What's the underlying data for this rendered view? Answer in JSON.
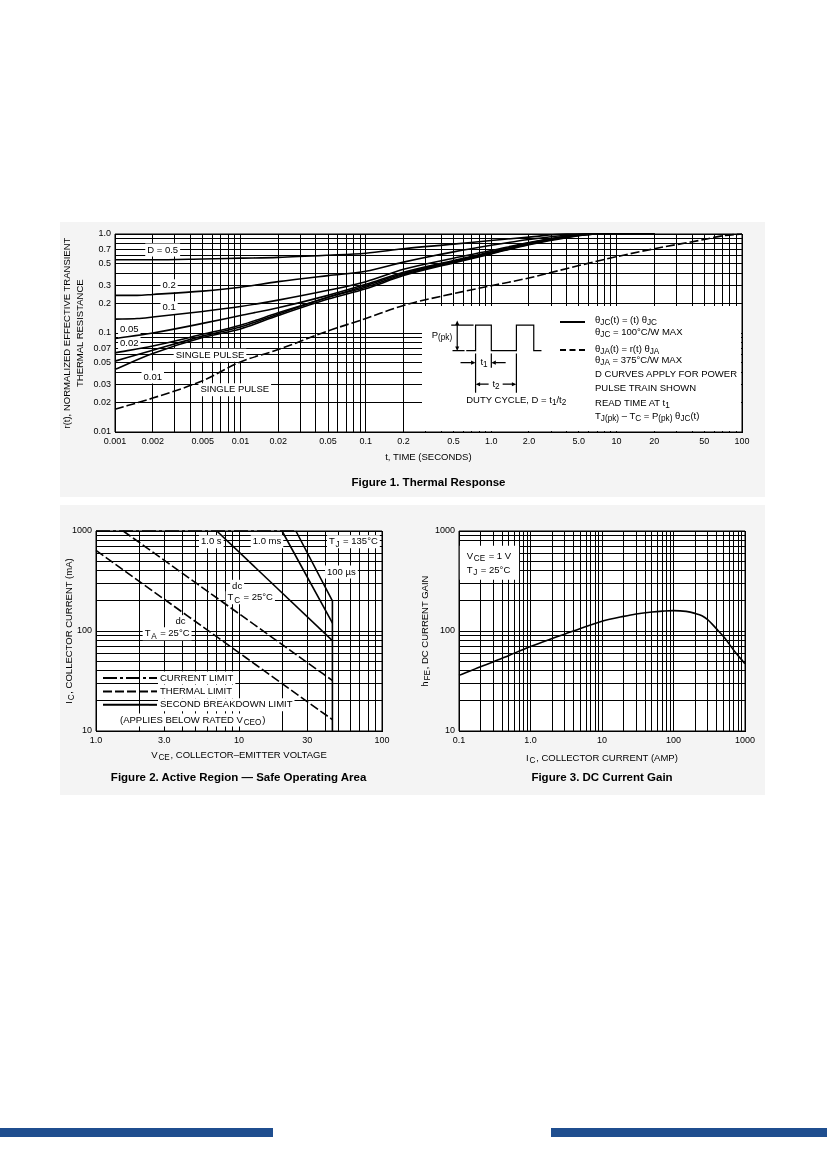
{
  "chart_data": [
    {
      "type": "line",
      "title": "Figure 1. Thermal Response",
      "xlabel": "t, TIME (SECONDS)",
      "ylabel": "r(t), NORMALIZED EFFECTIVE TRANSIENT\nTHERMAL RESISTANCE",
      "log": "xy",
      "xlim": [
        0.001,
        100
      ],
      "ylim": [
        0.01,
        1
      ],
      "xticks": [
        0.001,
        0.002,
        {
          "value": 0.003,
          "label": null
        },
        {
          "value": 0.004,
          "label": null
        },
        0.005,
        {
          "value": 0.006,
          "label": null
        },
        {
          "value": 0.007,
          "label": null
        },
        {
          "value": 0.008,
          "label": null
        },
        {
          "value": 0.009,
          "label": null
        },
        0.01,
        0.02,
        {
          "value": 0.03,
          "label": null
        },
        {
          "value": 0.04,
          "label": null
        },
        0.05,
        {
          "value": 0.06,
          "label": null
        },
        {
          "value": 0.07,
          "label": null
        },
        {
          "value": 0.08,
          "label": null
        },
        {
          "value": 0.09,
          "label": null
        },
        0.1,
        0.2,
        {
          "value": 0.3,
          "label": null
        },
        {
          "value": 0.4,
          "label": null
        },
        0.5,
        {
          "value": 0.6,
          "label": null
        },
        {
          "value": 0.7,
          "label": null
        },
        {
          "value": 0.8,
          "label": null
        },
        {
          "value": 0.9,
          "label": null
        },
        {
          "value": 1,
          "label": "1.0"
        },
        {
          "value": 2,
          "label": "2.0"
        },
        {
          "value": 3,
          "label": null
        },
        {
          "value": 4,
          "label": null
        },
        {
          "value": 5,
          "label": "5.0"
        },
        {
          "value": 6,
          "label": null
        },
        {
          "value": 7,
          "label": null
        },
        {
          "value": 8,
          "label": null
        },
        {
          "value": 9,
          "label": null
        },
        10,
        20,
        {
          "value": 30,
          "label": null
        },
        {
          "value": 40,
          "label": null
        },
        50,
        {
          "value": 60,
          "label": null
        },
        {
          "value": 70,
          "label": null
        },
        {
          "value": 80,
          "label": null
        },
        {
          "value": 90,
          "label": null
        },
        100
      ],
      "yticks": [
        0.01,
        0.02,
        0.03,
        {
          "value": 0.04,
          "label": null
        },
        0.05,
        {
          "value": 0.06,
          "label": null
        },
        0.07,
        {
          "value": 0.08,
          "label": null
        },
        {
          "value": 0.09,
          "label": null
        },
        0.1,
        0.2,
        0.3,
        {
          "value": 0.4,
          "label": null
        },
        0.5,
        {
          "value": 0.6,
          "label": null
        },
        0.7,
        {
          "value": 0.8,
          "label": null
        },
        {
          "value": 0.9,
          "label": null
        },
        {
          "value": 1,
          "label": "1.0"
        }
      ],
      "grid": true,
      "series": [
        {
          "color": "#000000",
          "x": [
            0.001,
            0.002,
            0.005,
            0.01,
            0.02,
            0.05,
            0.1,
            0.2,
            0.5,
            1,
            2,
            4,
            20
          ],
          "values": [
            0.55,
            0.55,
            0.56,
            0.57,
            0.58,
            0.61,
            0.64,
            0.71,
            0.79,
            0.86,
            0.93,
            1.0,
            1.0
          ]
        },
        {
          "color": "#000000",
          "x": [
            0.001,
            0.0015,
            0.002,
            0.005,
            0.01,
            0.02,
            0.05,
            0.1,
            0.2,
            0.5,
            1,
            2,
            4,
            6,
            20
          ],
          "values": [
            0.24,
            0.24,
            0.245,
            0.265,
            0.29,
            0.33,
            0.38,
            0.42,
            0.52,
            0.66,
            0.77,
            0.88,
            0.97,
            1.0,
            1.0
          ]
        },
        {
          "color": "#000000",
          "x": [
            0.001,
            0.0015,
            0.002,
            0.005,
            0.01,
            0.02,
            0.05,
            0.1,
            0.2,
            0.5,
            1,
            2,
            4,
            6,
            20
          ],
          "values": [
            0.138,
            0.14,
            0.145,
            0.165,
            0.185,
            0.215,
            0.27,
            0.33,
            0.44,
            0.57,
            0.68,
            0.82,
            0.95,
            1.0,
            1.0
          ]
        },
        {
          "color": "#000000",
          "x": [
            0.001,
            0.002,
            0.005,
            0.01,
            0.02,
            0.05,
            0.1,
            0.2,
            0.5,
            1,
            2,
            4,
            7,
            20
          ],
          "values": [
            0.088,
            0.1,
            0.125,
            0.15,
            0.18,
            0.24,
            0.31,
            0.41,
            0.54,
            0.66,
            0.81,
            0.95,
            1.0,
            1.0
          ]
        },
        {
          "color": "#000000",
          "x": [
            0.001,
            0.002,
            0.005,
            0.01,
            0.02,
            0.05,
            0.1,
            0.2,
            0.5,
            1,
            2,
            4,
            7,
            20
          ],
          "values": [
            0.063,
            0.074,
            0.097,
            0.12,
            0.16,
            0.23,
            0.3,
            0.4,
            0.53,
            0.65,
            0.8,
            0.94,
            1.0,
            1.0
          ]
        },
        {
          "color": "#000000",
          "x": [
            0.001,
            0.002,
            0.005,
            0.01,
            0.02,
            0.05,
            0.1,
            0.2,
            0.5,
            1,
            2,
            4,
            7,
            20
          ],
          "values": [
            0.052,
            0.067,
            0.093,
            0.115,
            0.155,
            0.23,
            0.29,
            0.39,
            0.52,
            0.64,
            0.79,
            0.93,
            1.0,
            1.0
          ]
        },
        {
          "color": "#000000",
          "x": [
            0.001,
            0.002,
            0.005,
            0.01,
            0.02,
            0.05,
            0.1,
            0.2,
            0.5,
            1,
            2,
            4,
            7,
            20
          ],
          "values": [
            0.043,
            0.062,
            0.09,
            0.11,
            0.15,
            0.22,
            0.28,
            0.38,
            0.51,
            0.63,
            0.78,
            0.92,
            1.0,
            1.0
          ]
        },
        {
          "color": "#000000",
          "line_style": "dashed",
          "x": [
            0.001,
            0.002,
            0.005,
            0.01,
            0.02,
            0.05,
            0.1,
            0.2,
            0.5,
            1,
            2,
            5,
            10,
            20,
            50,
            70,
            100
          ],
          "values": [
            0.017,
            0.022,
            0.033,
            0.051,
            0.068,
            0.105,
            0.14,
            0.19,
            0.25,
            0.3,
            0.36,
            0.48,
            0.59,
            0.71,
            0.88,
            0.96,
            1.0
          ]
        }
      ],
      "annotations": [
        {
          "text": "D = 0.5",
          "x": 0.0024,
          "y": 0.69
        },
        {
          "text": "0.2",
          "x": 0.0027,
          "y": 0.3
        },
        {
          "text": "0.1",
          "x": 0.0027,
          "y": 0.18
        },
        {
          "text": "0.05",
          "x": 0.0013,
          "y": 0.11
        },
        {
          "text": "0.02",
          "x": 0.0013,
          "y": 0.079
        },
        {
          "text": "0.01",
          "x": 0.002,
          "y": 0.036
        },
        "SINGLE PULSE",
        "SINGLE PULSE",
        "P$_{(pk)}$",
        "t$_{1}$",
        "t$_{2}$",
        "DUTY CYCLE, D = t$_{1}$/t$_{2}$",
        "θ$_{JC}$(t) = (t) θ$_{JC}$",
        "θ$_{JC}$ = 100°C/W MAX",
        "θ$_{JA}$(t) = r(t) θ$_{JA}$",
        "θ$_{JA}$ = 375°C/W MAX",
        "D CURVES APPLY FOR POWER",
        "PULSE TRAIN SHOWN",
        "READ TIME AT t$_{1}$",
        "T$_{J(pk)}$ – T$_{C}$ = P$_{(pk)}$ θ$_{JC}$(t)"
      ]
    },
    {
      "type": "line",
      "title": "Figure 2. Active Region — Safe Operating Area",
      "xlabel": "V$_{CE}$, COLLECTOR–EMITTER VOLTAGE",
      "ylabel": "I$_{C}$, COLLECTOR CURRENT (mA)",
      "log": "xy",
      "xlim": [
        1,
        100
      ],
      "ylim": [
        10,
        1000
      ],
      "xticks": [
        {
          "value": 1,
          "label": "1.0"
        },
        {
          "value": 2,
          "label": null
        },
        {
          "value": 3,
          "label": "3.0"
        },
        {
          "value": 4,
          "label": null
        },
        {
          "value": 5,
          "label": null
        },
        {
          "value": 6,
          "label": null
        },
        {
          "value": 7,
          "label": null
        },
        {
          "value": 8,
          "label": null
        },
        {
          "value": 9,
          "label": null
        },
        10,
        {
          "value": 20,
          "label": null
        },
        30,
        {
          "value": 40,
          "label": null
        },
        {
          "value": 50,
          "label": null
        },
        {
          "value": 60,
          "label": null
        },
        {
          "value": 70,
          "label": null
        },
        {
          "value": 80,
          "label": null
        },
        {
          "value": 90,
          "label": null
        },
        100
      ],
      "yticks": [
        10,
        {
          "value": 20,
          "label": null
        },
        {
          "value": 30,
          "label": null
        },
        {
          "value": 40,
          "label": null
        },
        {
          "value": 50,
          "label": null
        },
        {
          "value": 60,
          "label": null
        },
        {
          "value": 70,
          "label": null
        },
        {
          "value": 80,
          "label": null
        },
        {
          "value": 90,
          "label": null
        },
        100,
        {
          "value": 200,
          "label": null
        },
        {
          "value": 300,
          "label": null
        },
        {
          "value": 400,
          "label": null
        },
        {
          "value": 500,
          "label": null
        },
        {
          "value": 600,
          "label": null
        },
        {
          "value": 700,
          "label": null
        },
        {
          "value": 800,
          "label": null
        },
        {
          "value": 900,
          "label": null
        },
        1000
      ],
      "grid": true,
      "legend": "bottom left",
      "series": [
        {
          "name": "CURRENT LIMIT",
          "color": "#000000",
          "line_style": "dashdot",
          "x": [
            1,
            25
          ],
          "values": [
            1000,
            1000
          ]
        },
        {
          "name": "THERMAL LIMIT",
          "color": "#000000",
          "line_style": "dashed",
          "x": [
            1.55,
            45
          ],
          "values": [
            1000,
            32
          ]
        },
        {
          "name": "SECOND BREAKDOWN LIMIT",
          "color": "#000000",
          "x": [
            7,
            45
          ],
          "values": [
            1000,
            80
          ]
        },
        {
          "color": "#000000",
          "line_style": "dashed",
          "x": [
            1,
            45
          ],
          "values": [
            640,
            13
          ]
        },
        {
          "color": "#000000",
          "x": [
            20,
            45
          ],
          "values": [
            1000,
            120
          ]
        },
        {
          "color": "#000000",
          "x": [
            25,
            45,
            45
          ],
          "values": [
            1000,
            200,
            10
          ]
        }
      ],
      "annotations": [
        {
          "text": "1.0 s",
          "x": 6.4,
          "y": 780
        },
        {
          "text": "1.0 ms",
          "x": 15.7,
          "y": 780
        },
        "T$_{J}$ = 135°C",
        {
          "text": "100 µs",
          "x": 52,
          "y": 390
        },
        {
          "text": "dc",
          "x": 9.7,
          "y": 280
        },
        "T$_{C}$ = 25°C",
        {
          "text": "dc",
          "x": 3.9,
          "y": 124
        },
        "T$_{A}$ = 25°C",
        "(APPLIES BELOW RATED V$_{CEO}$)"
      ]
    },
    {
      "type": "line",
      "title": "Figure 3. DC Current Gain",
      "xlabel": "I$_{C}$, COLLECTOR CURRENT (AMP)",
      "ylabel": "h$_{FE}$, DC CURRENT GAIN",
      "log": "xy",
      "xlim": [
        0.1,
        1000
      ],
      "ylim": [
        10,
        1000
      ],
      "xticks": [
        0.1,
        {
          "value": 0.2,
          "label": null
        },
        {
          "value": 0.3,
          "label": null
        },
        {
          "value": 0.4,
          "label": null
        },
        {
          "value": 0.5,
          "label": null
        },
        {
          "value": 0.6,
          "label": null
        },
        {
          "value": 0.7,
          "label": null
        },
        {
          "value": 0.8,
          "label": null
        },
        {
          "value": 0.9,
          "label": null
        },
        {
          "value": 1,
          "label": "1.0"
        },
        {
          "value": 2,
          "label": null
        },
        {
          "value": 3,
          "label": null
        },
        {
          "value": 4,
          "label": null
        },
        {
          "value": 5,
          "label": null
        },
        {
          "value": 6,
          "label": null
        },
        {
          "value": 7,
          "label": null
        },
        {
          "value": 8,
          "label": null
        },
        {
          "value": 9,
          "label": null
        },
        10,
        {
          "value": 20,
          "label": null
        },
        {
          "value": 30,
          "label": null
        },
        {
          "value": 40,
          "label": null
        },
        {
          "value": 50,
          "label": null
        },
        {
          "value": 60,
          "label": null
        },
        {
          "value": 70,
          "label": null
        },
        {
          "value": 80,
          "label": null
        },
        {
          "value": 90,
          "label": null
        },
        100,
        {
          "value": 200,
          "label": null
        },
        {
          "value": 300,
          "label": null
        },
        {
          "value": 400,
          "label": null
        },
        {
          "value": 500,
          "label": null
        },
        {
          "value": 600,
          "label": null
        },
        {
          "value": 700,
          "label": null
        },
        {
          "value": 800,
          "label": null
        },
        {
          "value": 900,
          "label": null
        },
        1000
      ],
      "yticks": [
        10,
        {
          "value": 20,
          "label": null
        },
        {
          "value": 30,
          "label": null
        },
        {
          "value": 40,
          "label": null
        },
        {
          "value": 50,
          "label": null
        },
        {
          "value": 60,
          "label": null
        },
        {
          "value": 70,
          "label": null
        },
        {
          "value": 80,
          "label": null
        },
        {
          "value": 90,
          "label": null
        },
        100,
        {
          "value": 200,
          "label": null
        },
        {
          "value": 300,
          "label": null
        },
        {
          "value": 400,
          "label": null
        },
        {
          "value": 500,
          "label": null
        },
        {
          "value": 600,
          "label": null
        },
        {
          "value": 700,
          "label": null
        },
        {
          "value": 800,
          "label": null
        },
        {
          "value": 900,
          "label": null
        },
        1000
      ],
      "grid": true,
      "x": [
        0.1,
        0.2,
        0.3,
        0.5,
        1,
        2,
        3,
        5,
        10,
        20,
        30,
        50,
        70,
        100,
        150,
        200,
        250,
        300,
        400,
        500,
        700,
        1000
      ],
      "values": [
        36,
        44,
        49,
        57,
        70,
        84,
        93,
        106,
        125,
        140,
        148,
        155,
        158,
        160,
        157,
        150,
        142,
        130,
        105,
        88,
        64,
        47
      ],
      "color": "#000000",
      "annotations": [
        "V$_{CE}$ = 1 V",
        "T$_{J}$ = 25°C"
      ]
    }
  ]
}
